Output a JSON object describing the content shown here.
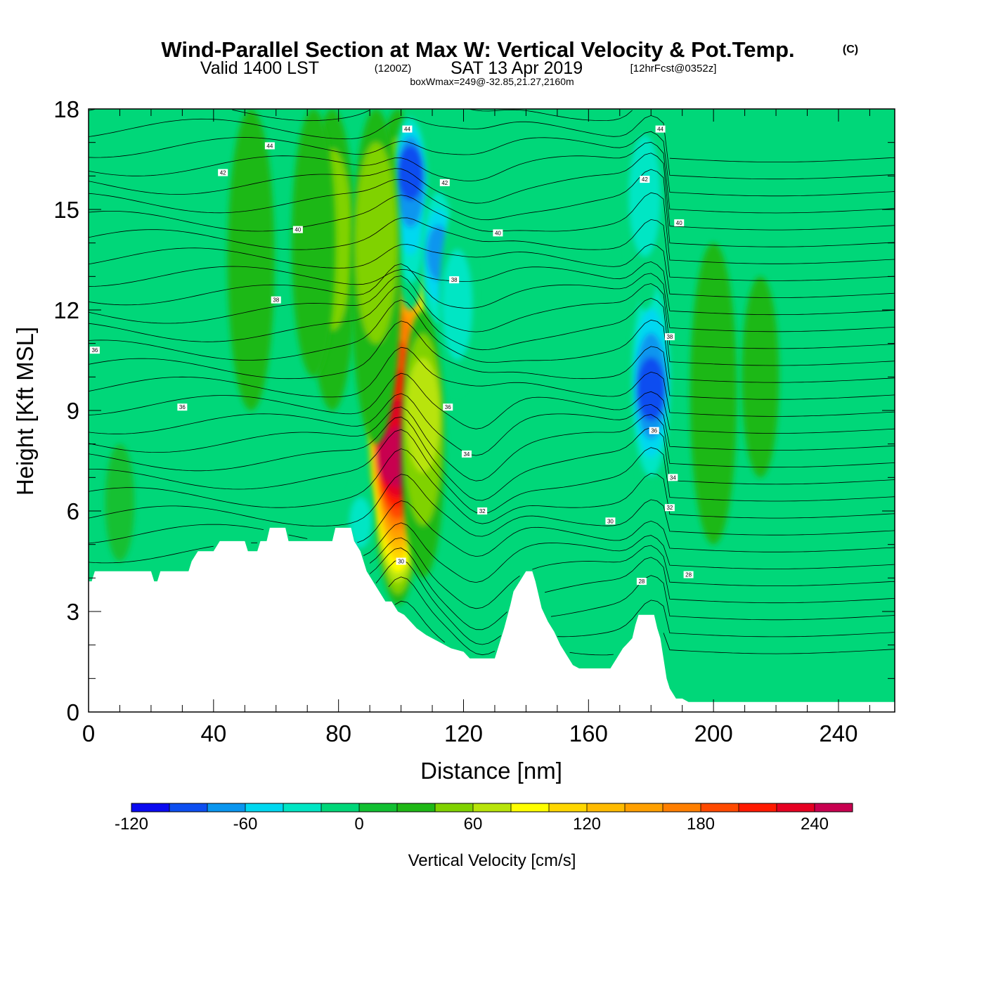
{
  "title": {
    "main": "Wind-Parallel Section at Max W: Vertical Velocity & Pot.Temp.",
    "copyright": "(C)",
    "valid_prefix": "Valid 1400 LST",
    "utc": "(1200Z)",
    "date": "SAT 13 Apr 2019",
    "forecast": "[12hrFcst@0352z]",
    "boxinfo": "boxWmax=249@-32.85,21.27,2160m"
  },
  "chart_data": {
    "type": "heatmap",
    "xlabel": "Distance [nm]",
    "ylabel": "Height [Kft MSL]",
    "xlim": [
      0,
      258
    ],
    "ylim": [
      0,
      18
    ],
    "x_ticks": [
      "0",
      "40",
      "80",
      "120",
      "160",
      "200",
      "240"
    ],
    "x_tick_values": [
      0,
      40,
      80,
      120,
      160,
      200,
      240
    ],
    "x_minor_step": 10,
    "y_ticks": [
      "0",
      "3",
      "6",
      "9",
      "12",
      "15",
      "18"
    ],
    "y_tick_values": [
      0,
      3,
      6,
      9,
      12,
      15,
      18
    ],
    "y_minor_step": 1,
    "colorbar": {
      "label": "Vertical Velocity [cm/s]",
      "min": -120,
      "max": 260,
      "tick_labels": [
        "-120",
        "-60",
        "0",
        "60",
        "120",
        "180",
        "240"
      ],
      "tick_values": [
        -120,
        -60,
        0,
        60,
        120,
        180,
        240
      ],
      "colors": [
        "#0a0af0",
        "#0d4ef0",
        "#0a96ef",
        "#00d8f0",
        "#00e6c4",
        "#00d779",
        "#12c032",
        "#1fb816",
        "#80d200",
        "#b8e40a",
        "#ffff00",
        "#ffd700",
        "#ffbb00",
        "#ffa000",
        "#ff7f00",
        "#ff4a00",
        "#ff1a00",
        "#e60022",
        "#c80050"
      ]
    },
    "terrain": [
      [
        0,
        3.9
      ],
      [
        1,
        3.9
      ],
      [
        2,
        4.2
      ],
      [
        20,
        4.2
      ],
      [
        21,
        3.9
      ],
      [
        22,
        3.9
      ],
      [
        23,
        4.2
      ],
      [
        32,
        4.2
      ],
      [
        33,
        4.5
      ],
      [
        35,
        4.8
      ],
      [
        40,
        4.8
      ],
      [
        42,
        5.1
      ],
      [
        50,
        5.1
      ],
      [
        51,
        4.8
      ],
      [
        54,
        4.8
      ],
      [
        55,
        5.1
      ],
      [
        57,
        5.1
      ],
      [
        58,
        5.5
      ],
      [
        63,
        5.5
      ],
      [
        64,
        5.1
      ],
      [
        78,
        5.1
      ],
      [
        79,
        5.5
      ],
      [
        84,
        5.5
      ],
      [
        85,
        5.1
      ],
      [
        87,
        4.8
      ],
      [
        88,
        4.5
      ],
      [
        89,
        4.2
      ],
      [
        91,
        3.9
      ],
      [
        93,
        3.6
      ],
      [
        95,
        3.3
      ],
      [
        97,
        3.3
      ],
      [
        99,
        3.0
      ],
      [
        101,
        2.9
      ],
      [
        103,
        2.7
      ],
      [
        105,
        2.5
      ],
      [
        108,
        2.3
      ],
      [
        110,
        2.2
      ],
      [
        114,
        2.0
      ],
      [
        116,
        1.9
      ],
      [
        120,
        1.8
      ],
      [
        122,
        1.6
      ],
      [
        130,
        1.6
      ],
      [
        131,
        1.9
      ],
      [
        132,
        2.2
      ],
      [
        133,
        2.5
      ],
      [
        135,
        3.2
      ],
      [
        136,
        3.6
      ],
      [
        138,
        3.9
      ],
      [
        140,
        4.2
      ],
      [
        142,
        4.2
      ],
      [
        143,
        3.9
      ],
      [
        144,
        3.5
      ],
      [
        145,
        3.1
      ],
      [
        147,
        2.7
      ],
      [
        149,
        2.4
      ],
      [
        151,
        2.0
      ],
      [
        153,
        1.7
      ],
      [
        155,
        1.4
      ],
      [
        157,
        1.3
      ],
      [
        167,
        1.3
      ],
      [
        169,
        1.6
      ],
      [
        171,
        1.9
      ],
      [
        174,
        2.2
      ],
      [
        175,
        2.6
      ],
      [
        176,
        2.9
      ],
      [
        181,
        2.9
      ],
      [
        182,
        2.5
      ],
      [
        183,
        2.2
      ],
      [
        184,
        1.6
      ],
      [
        185,
        1.0
      ],
      [
        186,
        0.7
      ],
      [
        188,
        0.4
      ],
      [
        190,
        0.4
      ],
      [
        192,
        0.3
      ],
      [
        258,
        0.3
      ]
    ],
    "velocity_features": [
      {
        "x": 99,
        "ytop": 18,
        "ybot": 3.2,
        "peak": 249,
        "ypeak": 7.2
      },
      {
        "x": 103,
        "ytop": 18,
        "ybot": 12,
        "peak": -95,
        "ypeak": 16.5
      },
      {
        "x": 112,
        "ytop": 16,
        "ybot": 11,
        "peak": -90,
        "ypeak": 13.8
      },
      {
        "x": 118,
        "ytop": 15,
        "ybot": 9.5,
        "peak": -45,
        "ypeak": 12
      },
      {
        "x": 107,
        "ytop": 12,
        "ybot": 4,
        "peak": 60,
        "ypeak": 9.5
      },
      {
        "x": 180,
        "ytop": 13.5,
        "ybot": 6.5,
        "peak": -110,
        "ypeak": 9.5
      },
      {
        "x": 178,
        "ytop": 18,
        "ybot": 12,
        "peak": -40,
        "ypeak": 16
      },
      {
        "x": 78,
        "ytop": 18,
        "ybot": 9,
        "peak": 40,
        "ypeak": 15
      },
      {
        "x": 72,
        "ytop": 18,
        "ybot": 10,
        "peak": 30,
        "ypeak": 14
      },
      {
        "x": 92,
        "ytop": 18,
        "ybot": 8,
        "peak": 45,
        "ypeak": 15.5
      },
      {
        "x": 87,
        "ytop": 7,
        "ybot": 4.5,
        "peak": -45,
        "ypeak": 5.5
      },
      {
        "x": 52,
        "ytop": 18,
        "ybot": 9,
        "peak": 22,
        "ypeak": 14
      },
      {
        "x": 10,
        "ytop": 8,
        "ybot": 4.5,
        "peak": 18,
        "ypeak": 6.5
      },
      {
        "x": 200,
        "ytop": 14,
        "ybot": 5,
        "peak": 22,
        "ypeak": 10
      },
      {
        "x": 215,
        "ytop": 13,
        "ybot": 7,
        "peak": 25,
        "ypeak": 11
      }
    ],
    "contour_labels": [
      {
        "x": 2,
        "y": 10.8,
        "text": "36"
      },
      {
        "x": 30,
        "y": 9.1,
        "text": "36"
      },
      {
        "x": 60,
        "y": 12.3,
        "text": "38"
      },
      {
        "x": 67,
        "y": 14.4,
        "text": "40"
      },
      {
        "x": 43,
        "y": 16.1,
        "text": "42"
      },
      {
        "x": 58,
        "y": 16.9,
        "text": "44"
      },
      {
        "x": 102,
        "y": 17.4,
        "text": "44"
      },
      {
        "x": 114,
        "y": 15.8,
        "text": "42"
      },
      {
        "x": 117,
        "y": 12.9,
        "text": "38"
      },
      {
        "x": 131,
        "y": 14.3,
        "text": "40"
      },
      {
        "x": 115,
        "y": 9.1,
        "text": "36"
      },
      {
        "x": 121,
        "y": 7.7,
        "text": "34"
      },
      {
        "x": 126,
        "y": 6.0,
        "text": "32"
      },
      {
        "x": 100,
        "y": 4.5,
        "text": "30"
      },
      {
        "x": 167,
        "y": 5.7,
        "text": "30"
      },
      {
        "x": 177,
        "y": 3.9,
        "text": "28"
      },
      {
        "x": 181,
        "y": 8.4,
        "text": "36"
      },
      {
        "x": 187,
        "y": 7.0,
        "text": "34"
      },
      {
        "x": 186,
        "y": 6.1,
        "text": "32"
      },
      {
        "x": 186,
        "y": 11.2,
        "text": "38"
      },
      {
        "x": 189,
        "y": 14.6,
        "text": "40"
      },
      {
        "x": 178,
        "y": 15.9,
        "text": "42"
      },
      {
        "x": 183,
        "y": 17.4,
        "text": "44"
      },
      {
        "x": 192,
        "y": 4.1,
        "text": "28"
      }
    ]
  }
}
